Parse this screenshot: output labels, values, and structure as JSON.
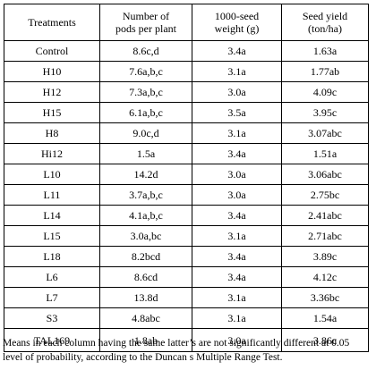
{
  "table": {
    "headers": [
      "Treatments",
      "Number of\npods per plant",
      "1000-seed\nweight (g)",
      "Seed yield\n(ton/ha)"
    ],
    "rows": [
      [
        "Control",
        "8.6c,d",
        "3.4a",
        "1.63a"
      ],
      [
        "H10",
        "7.6a,b,c",
        "3.1a",
        "1.77ab"
      ],
      [
        "H12",
        "7.3a,b,c",
        "3.0a",
        "4.09c"
      ],
      [
        "H15",
        "6.1a,b,c",
        "3.5a",
        "3.95c"
      ],
      [
        "H8",
        "9.0c,d",
        "3.1a",
        "3.07abc"
      ],
      [
        "Hi12",
        "1.5a",
        "3.4a",
        "1.51a"
      ],
      [
        "L10",
        "14.2d",
        "3.0a",
        "3.06abc"
      ],
      [
        "L11",
        "3.7a,b,c",
        "3.0a",
        "2.75bc"
      ],
      [
        "L14",
        "4.1a,b,c",
        "3.4a",
        "2.41abc"
      ],
      [
        "L15",
        "3.0a,bc",
        "3.1a",
        "2.71abc"
      ],
      [
        "L18",
        "8.2bcd",
        "3.4a",
        "3.89c"
      ],
      [
        "L6",
        "8.6cd",
        "3.4a",
        "4.12c"
      ],
      [
        "L7",
        "13.8d",
        "3.1a",
        "3.36bc"
      ],
      [
        "S3",
        "4.8abc",
        "3.1a",
        "1.54a"
      ],
      [
        "TAL169",
        "1.8ab",
        "3.0a",
        "3.86c"
      ]
    ]
  },
  "footnote": "Means in each column having the same latter’s are not significantly different at 0.05 level of probability, according to the Duncan s Multiple Range Test."
}
